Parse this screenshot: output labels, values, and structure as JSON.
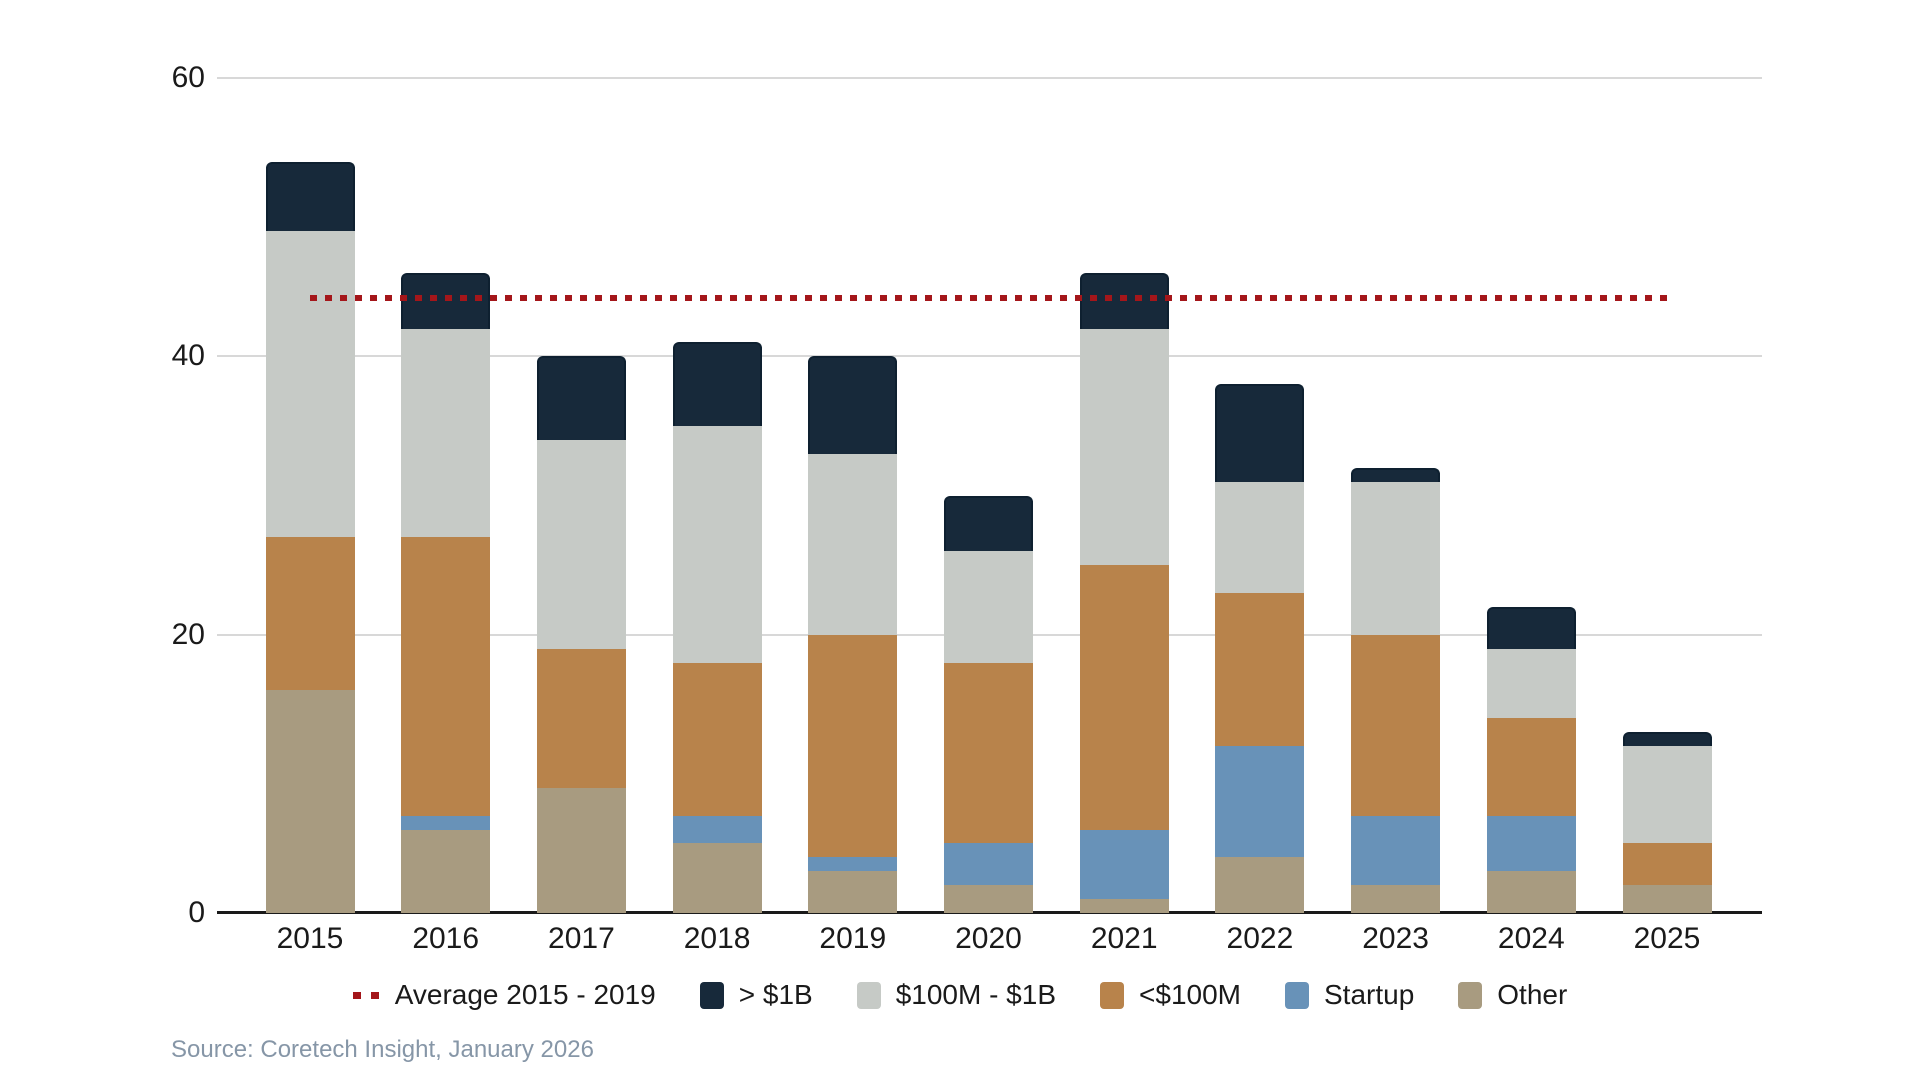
{
  "source_note": "Source: Coretech Insight, January 2026",
  "colors": {
    "background": "#ffffff",
    "gridline": "#d8d8d8",
    "axis": "#1a1a1a",
    "tick_label": "#1a1a1a",
    "source_text": "#8696a7",
    "bar_cap_border": "#0e2030"
  },
  "chart_data": {
    "type": "bar",
    "stacked": true,
    "title": "",
    "xlabel": "",
    "ylabel": "",
    "ylim": [
      0,
      60
    ],
    "yticks": [
      0,
      20,
      40,
      60
    ],
    "grid": true,
    "legend_position": "bottom",
    "categories": [
      "2015",
      "2016",
      "2017",
      "2018",
      "2019",
      "2020",
      "2021",
      "2022",
      "2023",
      "2024",
      "2025"
    ],
    "series": [
      {
        "name": "Other",
        "slug": "other",
        "color": "#a89b80",
        "values": [
          16,
          6,
          9,
          5,
          3,
          2,
          1,
          4,
          2,
          3,
          2
        ]
      },
      {
        "name": "Startup",
        "slug": "startup",
        "color": "#6892b8",
        "values": [
          0,
          1,
          0,
          2,
          1,
          3,
          5,
          8,
          5,
          4,
          0
        ]
      },
      {
        "name": "<$100M",
        "slug": "lt-100m",
        "color": "#b8834b",
        "values": [
          11,
          20,
          10,
          11,
          16,
          13,
          19,
          11,
          13,
          7,
          3
        ]
      },
      {
        "name": "$100M - $1B",
        "slug": "100m-1b",
        "color": "#c6cac6",
        "values": [
          22,
          15,
          15,
          17,
          13,
          8,
          17,
          8,
          11,
          5,
          7
        ]
      },
      {
        "name": "> $1B",
        "slug": "gt-1b",
        "color": "#17293a",
        "values": [
          5,
          4,
          6,
          6,
          7,
          4,
          4,
          7,
          1,
          3,
          1
        ]
      }
    ],
    "totals": [
      54,
      46,
      40,
      41,
      40,
      30,
      46,
      38,
      32,
      22,
      13
    ],
    "average_line": {
      "label": "Average 2015 - 2019",
      "value": 44.2,
      "color": "#a4161a"
    },
    "legend": [
      {
        "label": "Average 2015 - 2019",
        "swatch": "dash",
        "color": "#a4161a"
      },
      {
        "label": "> $1B",
        "swatch": "box",
        "color": "#17293a"
      },
      {
        "label": "$100M - $1B",
        "swatch": "box",
        "color": "#c6cac6"
      },
      {
        "label": "<$100M",
        "swatch": "box",
        "color": "#b8834b"
      },
      {
        "label": "Startup",
        "swatch": "box",
        "color": "#6892b8"
      },
      {
        "label": "Other",
        "swatch": "box",
        "color": "#a89b80"
      }
    ]
  }
}
